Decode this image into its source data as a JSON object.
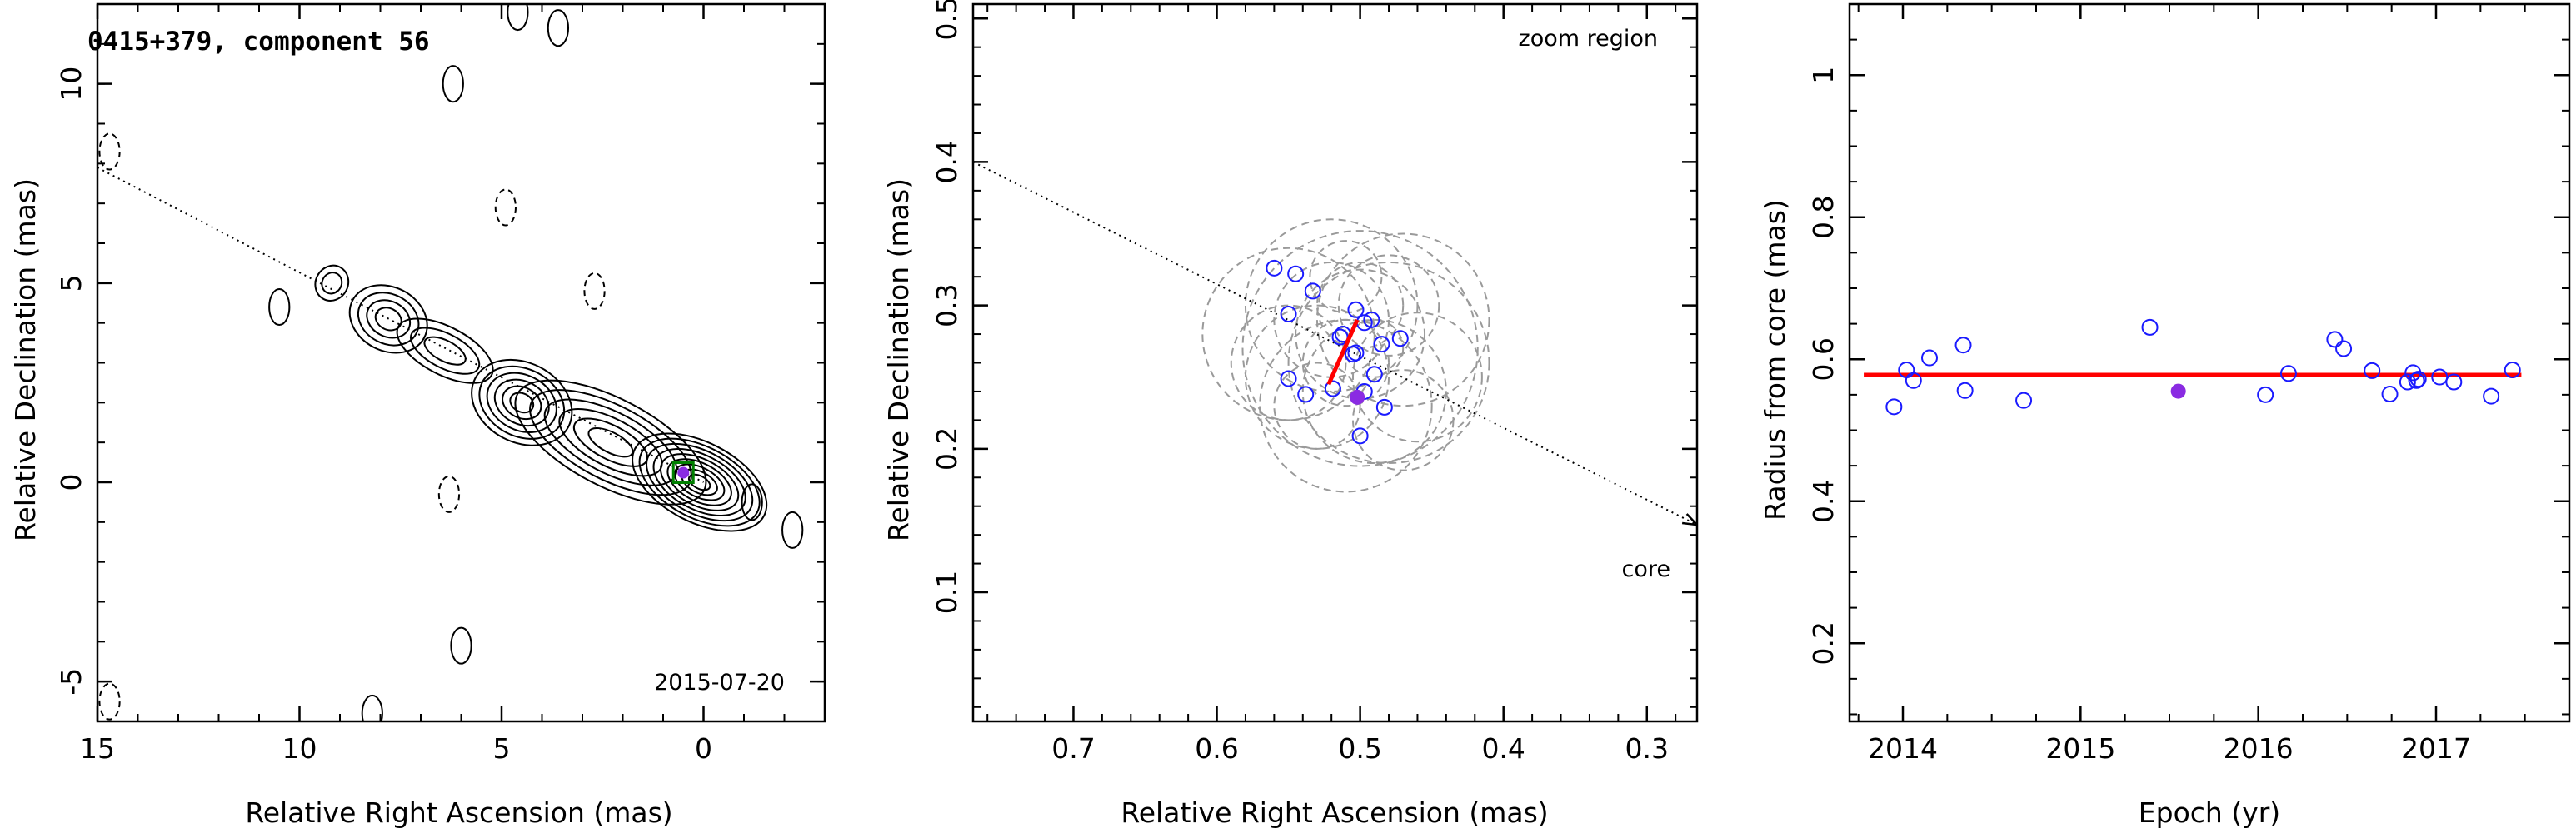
{
  "chart_data": [
    {
      "type": "contour",
      "title": "0415+379, component 56",
      "date_label": "2015-07-20",
      "xlabel": "Relative Right Ascension (mas)",
      "ylabel": "Relative Declination (mas)",
      "xlim": [
        15,
        -3
      ],
      "ylim": [
        -6,
        12
      ],
      "xticks": [
        15,
        10,
        5,
        0
      ],
      "yticks": [
        -5,
        0,
        5,
        10
      ],
      "jet_direction_line": {
        "from": [
          15,
          7.9
        ],
        "to": [
          0,
          0
        ]
      },
      "component": {
        "x": 0.5,
        "y": 0.24,
        "marker": "filled circle in square"
      },
      "jet_knots": [
        {
          "x": 0.1,
          "y": 0.0,
          "nlevels": 9,
          "a": 1.8,
          "b": 1.0
        },
        {
          "x": 2.3,
          "y": 1.0,
          "nlevels": 6,
          "a": 2.6,
          "b": 1.1
        },
        {
          "x": 4.5,
          "y": 2.0,
          "nlevels": 6,
          "a": 1.3,
          "b": 1.0
        },
        {
          "x": 6.4,
          "y": 3.3,
          "nlevels": 3,
          "a": 1.3,
          "b": 0.6
        },
        {
          "x": 7.8,
          "y": 4.1,
          "nlevels": 4,
          "a": 1.0,
          "b": 0.8
        },
        {
          "x": 9.2,
          "y": 5.0,
          "nlevels": 2,
          "a": 0.4,
          "b": 0.45
        }
      ],
      "isolated_contours": [
        {
          "x": 6.2,
          "y": 10.0,
          "dashed": false
        },
        {
          "x": 3.6,
          "y": 11.4,
          "dashed": false
        },
        {
          "x": 4.6,
          "y": 11.8,
          "dashed": false
        },
        {
          "x": 10.5,
          "y": 4.4,
          "dashed": false
        },
        {
          "x": -2.2,
          "y": -1.2,
          "dashed": false
        },
        {
          "x": -1.2,
          "y": -0.5,
          "dashed": false
        },
        {
          "x": 6.0,
          "y": -4.1,
          "dashed": false
        },
        {
          "x": 8.2,
          "y": -5.8,
          "dashed": false
        },
        {
          "x": 14.7,
          "y": 8.3,
          "dashed": true
        },
        {
          "x": 4.9,
          "y": 6.9,
          "dashed": true
        },
        {
          "x": 2.7,
          "y": 4.8,
          "dashed": true
        },
        {
          "x": 6.3,
          "y": -0.3,
          "dashed": true
        },
        {
          "x": 14.7,
          "y": -5.5,
          "dashed": true
        }
      ]
    },
    {
      "type": "scatter",
      "annotations": [
        "zoom region",
        "core"
      ],
      "xlabel": "Relative Right Ascension (mas)",
      "ylabel": "Relative Declination (mas)",
      "xlim": [
        0.77,
        0.265
      ],
      "ylim": [
        0.01,
        0.51
      ],
      "xticks": [
        0.7,
        0.6,
        0.5,
        0.4,
        0.3
      ],
      "yticks": [
        0.1,
        0.2,
        0.3,
        0.4,
        0.5
      ],
      "open_points": [
        [
          0.56,
          0.326
        ],
        [
          0.545,
          0.322
        ],
        [
          0.533,
          0.31
        ],
        [
          0.55,
          0.294
        ],
        [
          0.503,
          0.297
        ],
        [
          0.492,
          0.29
        ],
        [
          0.497,
          0.288
        ],
        [
          0.512,
          0.28
        ],
        [
          0.514,
          0.278
        ],
        [
          0.485,
          0.273
        ],
        [
          0.472,
          0.277
        ],
        [
          0.505,
          0.266
        ],
        [
          0.503,
          0.267
        ],
        [
          0.49,
          0.252
        ],
        [
          0.55,
          0.249
        ],
        [
          0.538,
          0.238
        ],
        [
          0.519,
          0.242
        ],
        [
          0.497,
          0.24
        ],
        [
          0.483,
          0.229
        ],
        [
          0.5,
          0.209
        ]
      ],
      "filled_point": [
        0.502,
        0.236
      ],
      "trend_segment": [
        [
          0.522,
          0.245
        ],
        [
          0.502,
          0.29
        ]
      ],
      "error_circles": [
        [
          0.5,
          0.27,
          0.082
        ],
        [
          0.52,
          0.3,
          0.06
        ],
        [
          0.48,
          0.26,
          0.07
        ],
        [
          0.51,
          0.23,
          0.06
        ],
        [
          0.55,
          0.28,
          0.06
        ],
        [
          0.47,
          0.29,
          0.06
        ],
        [
          0.5,
          0.28,
          0.045
        ],
        [
          0.49,
          0.24,
          0.05
        ],
        [
          0.53,
          0.25,
          0.05
        ],
        [
          0.52,
          0.29,
          0.04
        ],
        [
          0.46,
          0.25,
          0.045
        ],
        [
          0.51,
          0.26,
          0.03
        ],
        [
          0.48,
          0.3,
          0.035
        ],
        [
          0.55,
          0.26,
          0.04
        ],
        [
          0.5,
          0.3,
          0.03
        ],
        [
          0.47,
          0.22,
          0.035
        ],
        [
          0.53,
          0.23,
          0.03
        ],
        [
          0.51,
          0.32,
          0.025
        ],
        [
          0.49,
          0.27,
          0.02
        ]
      ],
      "jet_direction_line": {
        "from": [
          0.77,
          0.4
        ],
        "to": [
          0.265,
          0.147
        ]
      }
    },
    {
      "type": "scatter",
      "xlabel": "Epoch (yr)",
      "ylabel": "Radius from core (mas)",
      "xlim": [
        2013.7,
        2017.75
      ],
      "ylim": [
        0.09,
        1.1
      ],
      "xticks": [
        2014,
        2015,
        2016,
        2017
      ],
      "yticks": [
        0.2,
        0.4,
        0.6,
        0.8,
        1
      ],
      "series": [
        {
          "x": [
            2013.95,
            2014.02,
            2014.06,
            2014.15,
            2014.34,
            2014.35,
            2014.68,
            2015.39,
            2016.04,
            2016.17,
            2016.43,
            2016.48,
            2016.64,
            2016.74,
            2016.84,
            2016.87,
            2016.89,
            2016.9,
            2017.02,
            2017.1,
            2017.31,
            2017.43
          ],
          "y": [
            0.533,
            0.585,
            0.57,
            0.602,
            0.62,
            0.556,
            0.542,
            0.645,
            0.55,
            0.58,
            0.628,
            0.615,
            0.584,
            0.551,
            0.568,
            0.581,
            0.57,
            0.572,
            0.575,
            0.568,
            0.548,
            0.585
          ],
          "marker": "open circle"
        }
      ],
      "filled_point": [
        2015.55,
        0.555
      ],
      "fit_line": {
        "x": [
          2013.78,
          2017.48
        ],
        "y": [
          0.578,
          0.578
        ]
      }
    }
  ],
  "colors": {
    "open_marker": "#1a1aff",
    "filled_marker": "#8a2be2",
    "fit_line": "#ff0000",
    "error_circle": "#9a9a9a",
    "square": "#008000",
    "axis": "#000000"
  }
}
